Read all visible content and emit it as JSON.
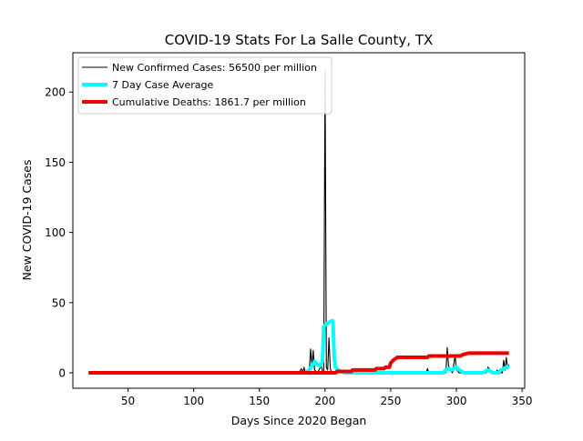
{
  "chart_data": {
    "type": "line",
    "title": "COVID-19 Stats For La Salle County, TX",
    "xlabel": "Days Since 2020 Began",
    "ylabel": "New COVID-19 Cases",
    "xlim": [
      8,
      352
    ],
    "ylim": [
      -11,
      228
    ],
    "x_ticks": [
      50,
      100,
      150,
      200,
      250,
      300,
      350
    ],
    "y_ticks": [
      0,
      50,
      100,
      150,
      200
    ],
    "grid": false,
    "legend_position": "top-left",
    "series": [
      {
        "name": "New Confirmed Cases: 56500 per million",
        "color": "#000000",
        "style": "thin",
        "points": [
          [
            20,
            0
          ],
          [
            180,
            0
          ],
          [
            182,
            3
          ],
          [
            183,
            0
          ],
          [
            184,
            4
          ],
          [
            185,
            0
          ],
          [
            188,
            1
          ],
          [
            189,
            17
          ],
          [
            190,
            5
          ],
          [
            191,
            16
          ],
          [
            192,
            2
          ],
          [
            194,
            0
          ],
          [
            196,
            3
          ],
          [
            197,
            6
          ],
          [
            198,
            1
          ],
          [
            199,
            1
          ],
          [
            200,
            215
          ],
          [
            201,
            4
          ],
          [
            202,
            2
          ],
          [
            203,
            25
          ],
          [
            204,
            3
          ],
          [
            205,
            0
          ],
          [
            210,
            0
          ],
          [
            211,
            2
          ],
          [
            212,
            0
          ],
          [
            277,
            0
          ],
          [
            278,
            3
          ],
          [
            279,
            0
          ],
          [
            292,
            0
          ],
          [
            293,
            18
          ],
          [
            294,
            5
          ],
          [
            295,
            3
          ],
          [
            296,
            1
          ],
          [
            297,
            0
          ],
          [
            299,
            12
          ],
          [
            300,
            3
          ],
          [
            301,
            1
          ],
          [
            302,
            0
          ],
          [
            323,
            0
          ],
          [
            324,
            4
          ],
          [
            325,
            3
          ],
          [
            326,
            0
          ],
          [
            330,
            0
          ],
          [
            331,
            2
          ],
          [
            332,
            0
          ],
          [
            335,
            0
          ],
          [
            336,
            9
          ],
          [
            337,
            2
          ],
          [
            338,
            11
          ],
          [
            339,
            3
          ],
          [
            340,
            6
          ]
        ]
      },
      {
        "name": "7 Day Case Average",
        "color": "#00ffff",
        "style": "thick",
        "points": [
          [
            20,
            0
          ],
          [
            185,
            0
          ],
          [
            188,
            2
          ],
          [
            190,
            5
          ],
          [
            192,
            8
          ],
          [
            194,
            6
          ],
          [
            196,
            5
          ],
          [
            198,
            8
          ],
          [
            199,
            33
          ],
          [
            201,
            35
          ],
          [
            203,
            36
          ],
          [
            205,
            37
          ],
          [
            206,
            37
          ],
          [
            207,
            10
          ],
          [
            208,
            4
          ],
          [
            210,
            2
          ],
          [
            212,
            1
          ],
          [
            215,
            0
          ],
          [
            290,
            0
          ],
          [
            292,
            2
          ],
          [
            294,
            3
          ],
          [
            296,
            2
          ],
          [
            298,
            3
          ],
          [
            300,
            4
          ],
          [
            302,
            2
          ],
          [
            304,
            1
          ],
          [
            306,
            0
          ],
          [
            320,
            0
          ],
          [
            322,
            1
          ],
          [
            324,
            2
          ],
          [
            326,
            1
          ],
          [
            328,
            0
          ],
          [
            332,
            0
          ],
          [
            334,
            2
          ],
          [
            336,
            3
          ],
          [
            338,
            4
          ],
          [
            340,
            5
          ]
        ]
      },
      {
        "name": "Cumulative Deaths: 1861.7 per million",
        "color": "#ee0000",
        "style": "thick",
        "points": [
          [
            20,
            0
          ],
          [
            208,
            0
          ],
          [
            209,
            1
          ],
          [
            220,
            1
          ],
          [
            221,
            2
          ],
          [
            238,
            2
          ],
          [
            239,
            3
          ],
          [
            245,
            3
          ],
          [
            246,
            4
          ],
          [
            249,
            4
          ],
          [
            250,
            7
          ],
          [
            252,
            9
          ],
          [
            255,
            11
          ],
          [
            278,
            11
          ],
          [
            279,
            12
          ],
          [
            303,
            12
          ],
          [
            305,
            13
          ],
          [
            309,
            14
          ],
          [
            340,
            14
          ]
        ]
      }
    ]
  }
}
